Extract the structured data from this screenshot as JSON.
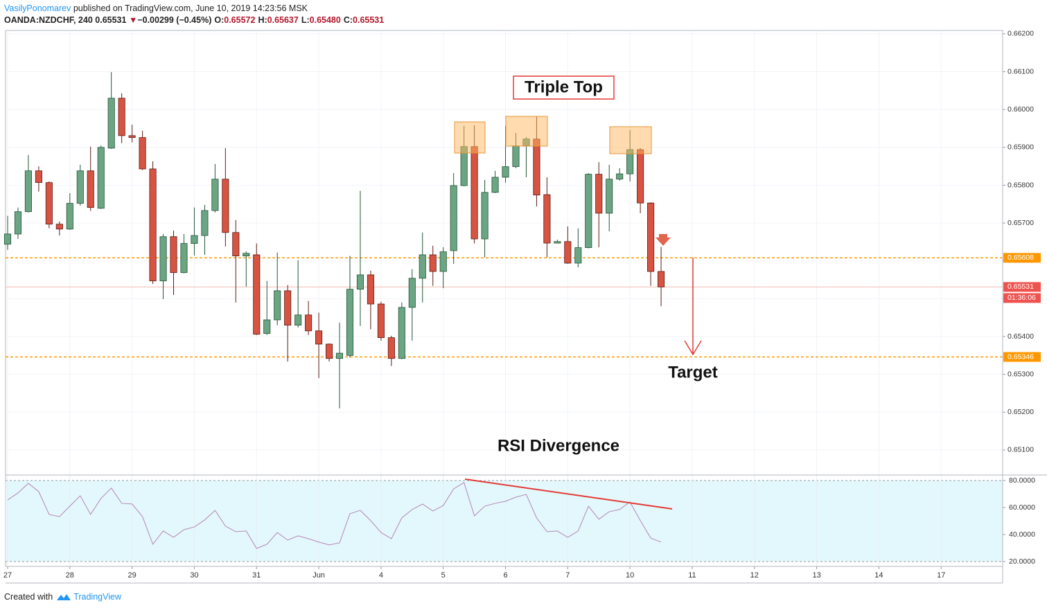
{
  "header": {
    "author": "VasilyPonomarev",
    "published": "published on TradingView.com, June 10, 2019 14:23:56 MSK",
    "symbol": "OANDA:NZDCHF, 240",
    "last": "0.65531",
    "arrow": "▼",
    "change": "−0.00299 (−0.45%)",
    "ohlc": [
      {
        "label": "O:",
        "value": "0.65572"
      },
      {
        "label": "H:",
        "value": "0.65637"
      },
      {
        "label": "L:",
        "value": "0.65480"
      },
      {
        "label": "C:",
        "value": "0.65531"
      }
    ]
  },
  "chart_data": [
    {
      "type": "candlestick",
      "up_color": "#6ba583",
      "down_color": "#d75442",
      "up_border": "#225437",
      "down_border": "#5b1a13",
      "grid": true,
      "open": [
        0.65644,
        0.65671,
        0.6573,
        0.65838,
        0.65807,
        0.65697,
        0.65684,
        0.65752,
        0.65838,
        0.65739,
        0.65898,
        0.6603,
        0.65931,
        0.65926,
        0.65843,
        0.65547,
        0.65664,
        0.65569,
        0.65646,
        0.65667,
        0.65733,
        0.65816,
        0.65675,
        0.65613,
        0.65616,
        0.65408,
        0.65444,
        0.65521,
        0.6543,
        0.65457,
        0.65415,
        0.6538,
        0.65342,
        0.6535,
        0.65525,
        0.65563,
        0.65486,
        0.65397,
        0.65342,
        0.65477,
        0.65554,
        0.65616,
        0.65572,
        0.65627,
        0.65799,
        0.65902,
        0.65658,
        0.65781,
        0.65821,
        0.65849,
        0.65904,
        0.65922,
        0.65775,
        0.65647,
        0.65651,
        0.65594,
        0.65635,
        0.65829,
        0.65726,
        0.65816,
        0.6583,
        0.65894,
        0.65753,
        0.65572
      ],
      "high": [
        0.65719,
        0.65741,
        0.6588,
        0.6585,
        0.6581,
        0.65704,
        0.65779,
        0.65854,
        0.65902,
        0.65905,
        0.66099,
        0.66043,
        0.6596,
        0.65944,
        0.65863,
        0.65671,
        0.6568,
        0.65671,
        0.65741,
        0.65748,
        0.65856,
        0.65898,
        0.65708,
        0.65625,
        0.65646,
        0.65547,
        0.65622,
        0.65536,
        0.65602,
        0.65494,
        0.65463,
        0.65382,
        0.65437,
        0.65613,
        0.65785,
        0.65574,
        0.65492,
        0.65402,
        0.6549,
        0.65578,
        0.65675,
        0.6564,
        0.65636,
        0.65832,
        0.65957,
        0.65958,
        0.65814,
        0.65838,
        0.65957,
        0.65938,
        0.65927,
        0.65982,
        0.65821,
        0.65656,
        0.65691,
        0.65686,
        0.65832,
        0.65861,
        0.65854,
        0.65845,
        0.65946,
        0.65898,
        0.65755,
        0.65637
      ],
      "low": [
        0.65629,
        0.65658,
        0.65728,
        0.65783,
        0.65686,
        0.65667,
        0.65682,
        0.65746,
        0.65732,
        0.65737,
        0.65896,
        0.65911,
        0.65913,
        0.6584,
        0.65539,
        0.65499,
        0.6551,
        0.65567,
        0.65614,
        0.65616,
        0.65728,
        0.65638,
        0.6549,
        0.65532,
        0.65404,
        0.65404,
        0.6543,
        0.65334,
        0.65424,
        0.65404,
        0.6529,
        0.65334,
        0.6521,
        0.65345,
        0.65428,
        0.65419,
        0.65389,
        0.65322,
        0.6534,
        0.65389,
        0.6549,
        0.65534,
        0.65528,
        0.65592,
        0.65797,
        0.65646,
        0.65609,
        0.65779,
        0.65807,
        0.65845,
        0.65821,
        0.65744,
        0.65609,
        0.65646,
        0.65592,
        0.65583,
        0.65633,
        0.65636,
        0.65678,
        0.65812,
        0.6581,
        0.65726,
        0.65534,
        0.6548
      ],
      "close": [
        0.65671,
        0.6573,
        0.65838,
        0.65807,
        0.65697,
        0.65684,
        0.65752,
        0.65838,
        0.65741,
        0.659,
        0.6603,
        0.65931,
        0.65926,
        0.65843,
        0.65547,
        0.65664,
        0.65569,
        0.65646,
        0.65667,
        0.65733,
        0.65816,
        0.65675,
        0.65613,
        0.6562,
        0.65406,
        0.65444,
        0.65521,
        0.6543,
        0.65457,
        0.65415,
        0.6538,
        0.65342,
        0.65356,
        0.65525,
        0.65563,
        0.65486,
        0.65397,
        0.65342,
        0.65477,
        0.65554,
        0.65616,
        0.65572,
        0.65624,
        0.65799,
        0.65902,
        0.65658,
        0.65781,
        0.65821,
        0.65849,
        0.65904,
        0.65922,
        0.65774,
        0.65647,
        0.65651,
        0.65594,
        0.65635,
        0.65829,
        0.65726,
        0.65816,
        0.6583,
        0.65894,
        0.65753,
        0.65572,
        0.65531
      ],
      "xlim": [
        -0.2,
        95.93
      ],
      "xticks": [
        {
          "value": 0,
          "label": "27"
        },
        {
          "value": 6,
          "label": "28"
        },
        {
          "value": 12,
          "label": "29"
        },
        {
          "value": 18,
          "label": "30"
        },
        {
          "value": 24,
          "label": "31"
        },
        {
          "value": 30,
          "label": "Jun"
        },
        {
          "value": 36,
          "label": "4"
        },
        {
          "value": 42,
          "label": "5"
        },
        {
          "value": 48,
          "label": "6"
        },
        {
          "value": 54,
          "label": "7"
        },
        {
          "value": 60,
          "label": "10"
        },
        {
          "value": 66,
          "label": "11"
        },
        {
          "value": 72,
          "label": "12"
        },
        {
          "value": 78,
          "label": "13"
        },
        {
          "value": 84,
          "label": "14"
        },
        {
          "value": 90,
          "label": "17"
        }
      ],
      "ylim": [
        0.65034,
        0.66209
      ],
      "yticks": [
        {
          "value": 0.651,
          "label": "0.65100"
        },
        {
          "value": 0.652,
          "label": "0.65200"
        },
        {
          "value": 0.653,
          "label": "0.65300"
        },
        {
          "value": 0.654,
          "label": "0.65400"
        },
        {
          "value": 0.655,
          "label": "0.65500"
        },
        {
          "value": 0.656,
          "label": "0.65600"
        },
        {
          "value": 0.657,
          "label": "0.65700"
        },
        {
          "value": 0.658,
          "label": "0.65800"
        },
        {
          "value": 0.659,
          "label": "0.65900"
        },
        {
          "value": 0.66,
          "label": "0.66000"
        },
        {
          "value": 0.661,
          "label": "0.66100"
        },
        {
          "value": 0.662,
          "label": "0.66200"
        }
      ],
      "levels": [
        0.65608,
        0.65346
      ],
      "level_color": "#ff9800",
      "last": {
        "value": 0.65531,
        "countdown": "01:36:06",
        "color": "#ef5350"
      }
    },
    {
      "type": "line",
      "color": "#b784b7",
      "band": [
        20,
        80
      ],
      "band_color": "#e3f8fc",
      "grid": true,
      "values": [
        65.6,
        70.8,
        77.9,
        71.8,
        54.9,
        53.3,
        61.0,
        68.7,
        54.9,
        66.7,
        74.4,
        63.1,
        62.6,
        53.3,
        32.8,
        42.6,
        37.9,
        43.6,
        45.6,
        50.8,
        57.9,
        46.2,
        42.1,
        42.6,
        29.7,
        32.8,
        41.5,
        35.9,
        39.0,
        36.9,
        34.4,
        32.3,
        33.8,
        55.4,
        57.9,
        50.3,
        41.5,
        36.9,
        52.3,
        58.5,
        62.6,
        57.4,
        61.5,
        73.8,
        78.5,
        53.8,
        61.0,
        63.1,
        64.6,
        67.7,
        69.7,
        52.3,
        42.1,
        42.6,
        37.9,
        42.6,
        61.0,
        51.3,
        56.9,
        58.5,
        64.1,
        50.3,
        37.4,
        34.4
      ],
      "ylim": [
        16.4,
        84.1
      ],
      "yticks": [
        {
          "value": 20,
          "label": "20.0000"
        },
        {
          "value": 40,
          "label": "40.0000"
        },
        {
          "value": 60,
          "label": "60.0000"
        },
        {
          "value": 80,
          "label": "80.0000"
        }
      ]
    }
  ],
  "annotations": {
    "triple_top": "Triple Top",
    "target": "Target",
    "rsi": "RSI Divergence"
  },
  "footer": {
    "created": "Created with",
    "brand": "TradingView"
  }
}
